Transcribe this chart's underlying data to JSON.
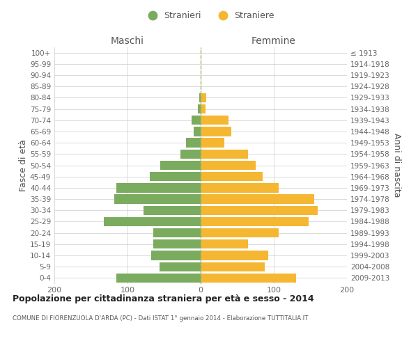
{
  "age_groups": [
    "0-4",
    "5-9",
    "10-14",
    "15-19",
    "20-24",
    "25-29",
    "30-34",
    "35-39",
    "40-44",
    "45-49",
    "50-54",
    "55-59",
    "60-64",
    "65-69",
    "70-74",
    "75-79",
    "80-84",
    "85-89",
    "90-94",
    "95-99",
    "100+"
  ],
  "birth_years": [
    "2009-2013",
    "2004-2008",
    "1999-2003",
    "1994-1998",
    "1989-1993",
    "1984-1988",
    "1979-1983",
    "1974-1978",
    "1969-1973",
    "1964-1968",
    "1959-1963",
    "1954-1958",
    "1949-1953",
    "1944-1948",
    "1939-1943",
    "1934-1938",
    "1929-1933",
    "1924-1928",
    "1919-1923",
    "1914-1918",
    "≤ 1913"
  ],
  "maschi": [
    115,
    56,
    68,
    65,
    65,
    132,
    78,
    118,
    115,
    70,
    55,
    28,
    20,
    10,
    12,
    4,
    2,
    0,
    0,
    0,
    0
  ],
  "femmine": [
    130,
    88,
    92,
    65,
    107,
    148,
    160,
    155,
    107,
    85,
    75,
    65,
    32,
    42,
    38,
    7,
    8,
    0,
    0,
    0,
    0
  ],
  "color_maschi": "#7aab5e",
  "color_femmine": "#f5b731",
  "color_dashed_line": "#9ab86a",
  "title_main": "Popolazione per cittadinanza straniera per età e sesso - 2014",
  "title_sub": "COMUNE DI FIORENZUOLA D'ARDA (PC) - Dati ISTAT 1° gennaio 2014 - Elaborazione TUTTITALIA.IT",
  "label_maschi_col": "Maschi",
  "label_femmine_col": "Femmine",
  "ylabel_left": "Fasce di età",
  "ylabel_right": "Anni di nascita",
  "legend_maschi": "Stranieri",
  "legend_femmine": "Straniere",
  "xlim": 200,
  "background_color": "#ffffff",
  "grid_color": "#cccccc",
  "bar_height": 0.82
}
